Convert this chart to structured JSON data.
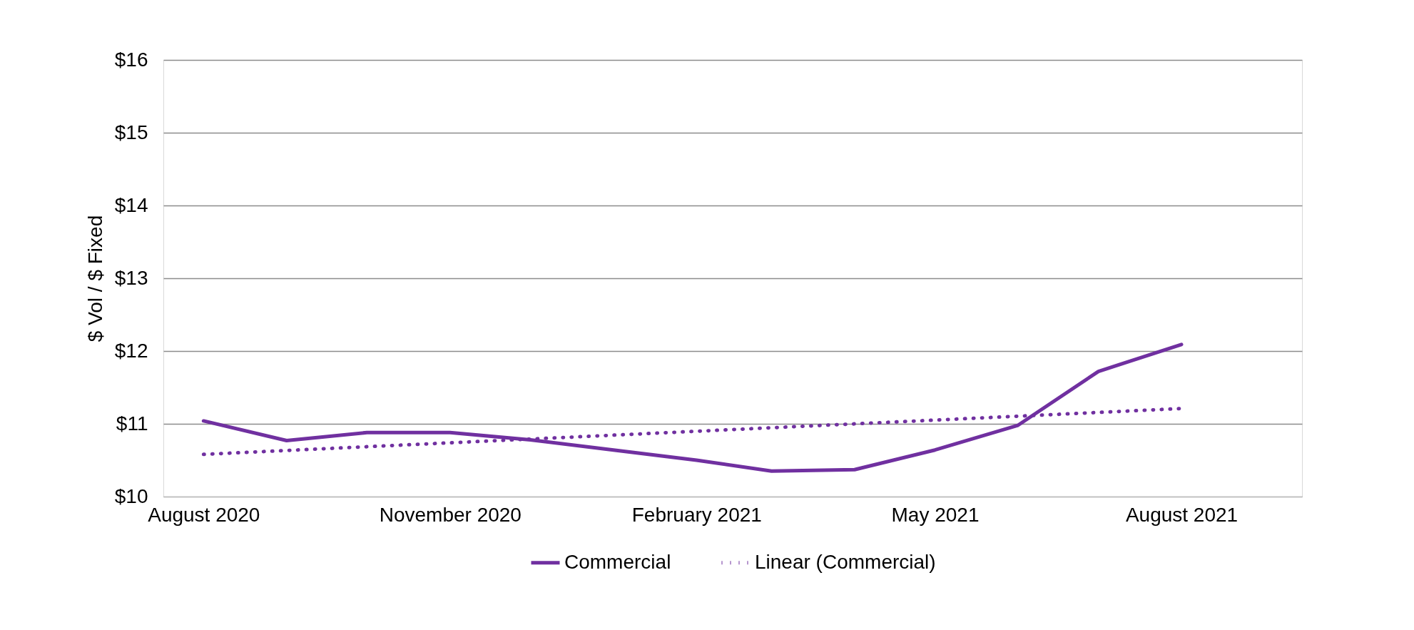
{
  "chart_data": {
    "type": "line",
    "ylabel": "$ Vol / $ Fixed",
    "x": [
      "2020-08",
      "2020-09",
      "2020-10",
      "2020-11",
      "2020-12",
      "2021-01",
      "2021-02",
      "2021-03",
      "2021-04",
      "2021-05",
      "2021-06",
      "2021-07",
      "2021-08"
    ],
    "series": [
      {
        "name": "Commercial",
        "color": "#7030a0",
        "line_style": "solid",
        "values": [
          11.04,
          10.77,
          10.88,
          10.88,
          10.78,
          10.64,
          10.5,
          10.35,
          10.37,
          10.64,
          10.98,
          11.72,
          12.09
        ]
      },
      {
        "name": "Linear (Commercial)",
        "color": "#7030a0",
        "line_style": "dotted",
        "x": [
          "2020-08",
          "2021-08"
        ],
        "values": [
          10.58,
          11.21
        ]
      }
    ],
    "xlim": [
      "2020-07-17",
      "2021-09-15"
    ],
    "xticks": [
      {
        "value": "2020-08",
        "label": "August 2020"
      },
      {
        "value": "2020-11",
        "label": "November 2020"
      },
      {
        "value": "2021-02",
        "label": "February 2021"
      },
      {
        "value": "2021-05",
        "label": "May 2021"
      },
      {
        "value": "2021-08",
        "label": "August 2021"
      }
    ],
    "ylim": [
      10,
      16
    ],
    "yticks": [
      {
        "value": 10,
        "label": "$10"
      },
      {
        "value": 11,
        "label": "$11"
      },
      {
        "value": 12,
        "label": "$12"
      },
      {
        "value": 13,
        "label": "$13"
      },
      {
        "value": 14,
        "label": "$14"
      },
      {
        "value": 15,
        "label": "$15"
      },
      {
        "value": 16,
        "label": "$16"
      }
    ],
    "grid": "y",
    "legend": "bottom",
    "marker": "none"
  }
}
